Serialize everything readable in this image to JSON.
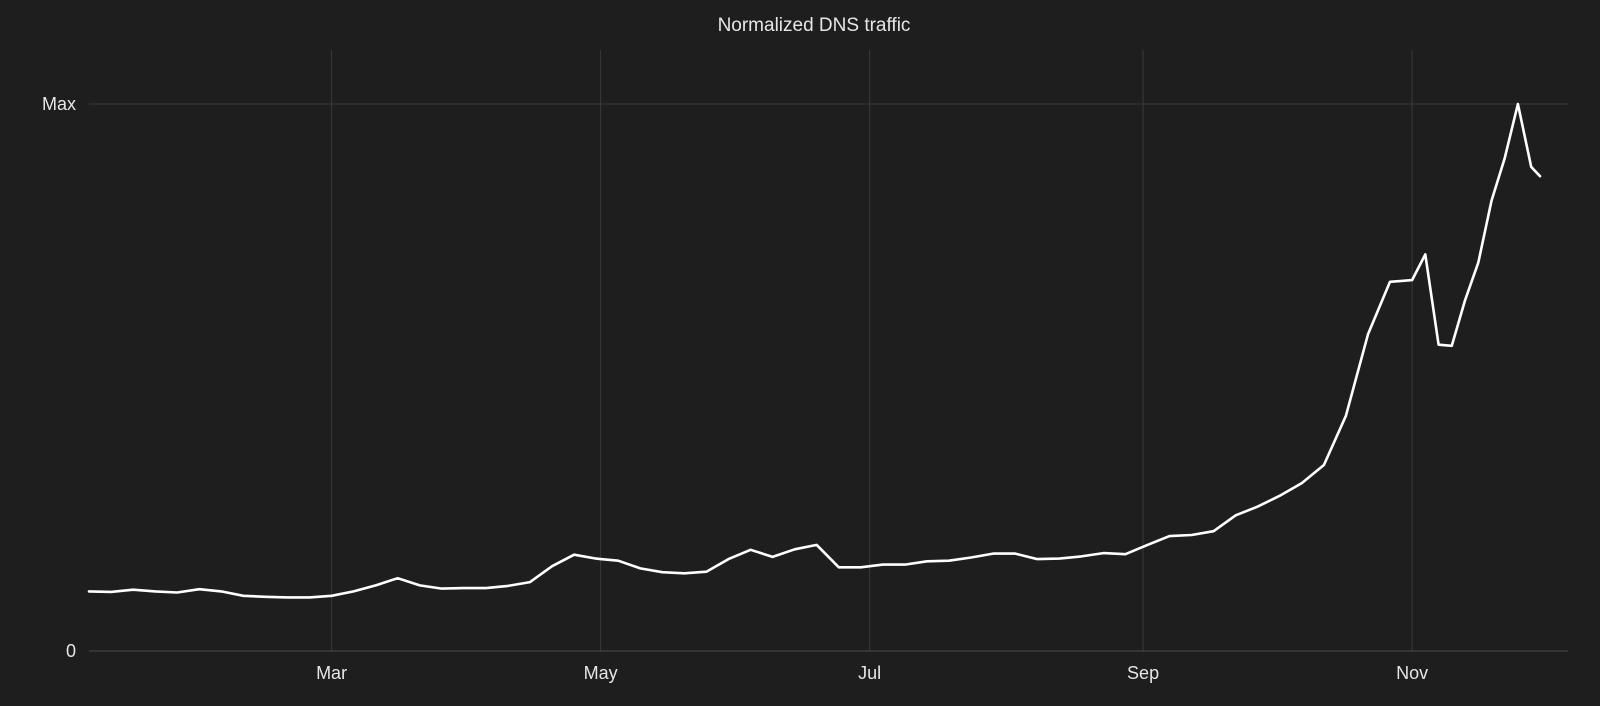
{
  "chart_data": {
    "type": "line",
    "title": "Normalized DNS traffic",
    "xlabel": "",
    "ylabel": "",
    "x_ticks": [
      "Mar",
      "May",
      "Jul",
      "Sep",
      "Nov"
    ],
    "y_ticks": [
      "0",
      "Max"
    ],
    "ylim": [
      0,
      100
    ],
    "grid": true,
    "legend": "none",
    "series": [
      {
        "color": "#ffffff",
        "x": [
          "01-05",
          "01-10",
          "01-15",
          "01-20",
          "01-25",
          "01-30",
          "02-04",
          "02-09",
          "02-14",
          "02-19",
          "02-24",
          "03-01",
          "03-06",
          "03-11",
          "03-16",
          "03-21",
          "03-26",
          "03-31",
          "04-05",
          "04-10",
          "04-15",
          "04-20",
          "04-25",
          "04-30",
          "05-01",
          "05-05",
          "05-10",
          "05-15",
          "05-20",
          "05-25",
          "05-30",
          "06-04",
          "06-09",
          "06-14",
          "06-19",
          "06-24",
          "06-29",
          "07-04",
          "07-09",
          "07-14",
          "07-19",
          "07-24",
          "07-29",
          "08-03",
          "08-08",
          "08-13",
          "08-18",
          "08-23",
          "08-28",
          "09-02",
          "09-07",
          "09-12",
          "09-17",
          "09-22",
          "09-27",
          "10-02",
          "10-07",
          "10-12",
          "10-17",
          "10-22",
          "10-27",
          "11-01",
          "11-04",
          "11-07",
          "11-10",
          "11-13",
          "11-16",
          "11-19",
          "11-22",
          "11-25",
          "11-28",
          "11-30"
        ],
        "values": [
          10.9,
          10.8,
          11.2,
          10.9,
          10.7,
          11.3,
          10.9,
          10.1,
          9.9,
          9.8,
          9.8,
          10.1,
          10.9,
          12.0,
          13.3,
          12.0,
          11.4,
          11.5,
          11.5,
          11.9,
          12.6,
          15.5,
          17.6,
          16.9,
          16.8,
          16.5,
          15.1,
          14.4,
          14.2,
          14.5,
          16.8,
          18.5,
          17.2,
          18.6,
          19.4,
          15.3,
          15.3,
          15.8,
          15.8,
          16.4,
          16.5,
          17.1,
          17.8,
          17.8,
          16.8,
          16.9,
          17.3,
          17.9,
          17.7,
          19.4,
          21.0,
          21.2,
          21.9,
          24.8,
          26.4,
          28.4,
          30.7,
          34.0,
          43.0,
          57.9,
          67.5,
          67.8,
          72.5,
          56.0,
          55.8,
          64.1,
          71.0,
          82.3,
          90.1,
          100.0,
          88.5,
          86.8
        ]
      }
    ]
  }
}
